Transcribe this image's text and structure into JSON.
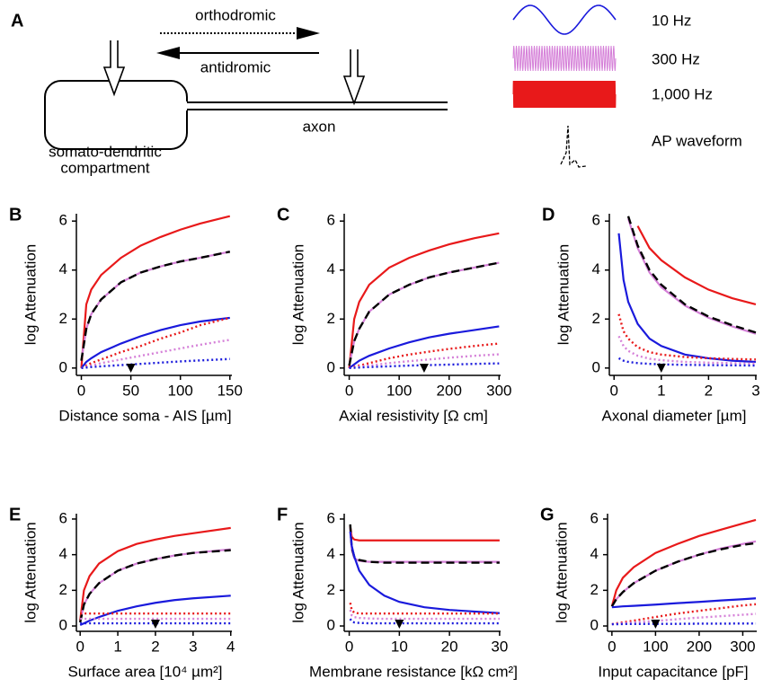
{
  "schematic": {
    "panel": "A",
    "orthodromic": "orthodromic",
    "antidromic": "antidromic",
    "axon": "axon",
    "compartment": [
      "somato-dendritic",
      "compartment"
    ],
    "frequencies": [
      "10 Hz",
      "300 Hz",
      "1,000 Hz"
    ],
    "waveform": "AP waveform"
  },
  "chart_data": [
    {
      "type": "line",
      "panel": "B",
      "xlabel": "Distance soma - AIS [µm]",
      "ylabel": "log Attenuation",
      "xlim": [
        -5,
        152
      ],
      "ylim": [
        -0.3,
        6.3
      ],
      "xticks": [
        0,
        50,
        100,
        150
      ],
      "yticks": [
        0,
        2,
        4,
        6
      ],
      "marker_x": 50,
      "x": [
        0,
        5,
        10,
        20,
        40,
        60,
        80,
        100,
        120,
        150
      ],
      "series": [
        {
          "color": "#e8191a",
          "style": "solid",
          "values": [
            0,
            2.6,
            3.2,
            3.8,
            4.5,
            5.0,
            5.35,
            5.65,
            5.9,
            6.2
          ]
        },
        {
          "color": "#d580d8",
          "style": "solid",
          "values": [
            0.3,
            1.6,
            2.2,
            2.8,
            3.5,
            3.9,
            4.15,
            4.35,
            4.5,
            4.75
          ]
        },
        {
          "color": "#000000",
          "style": "dashed",
          "values": [
            0.3,
            1.6,
            2.2,
            2.8,
            3.5,
            3.9,
            4.15,
            4.35,
            4.5,
            4.75
          ]
        },
        {
          "color": "#1a1adc",
          "style": "solid",
          "values": [
            0,
            0.25,
            0.4,
            0.65,
            1.0,
            1.3,
            1.55,
            1.75,
            1.9,
            2.05
          ]
        },
        {
          "color": "#e8191a",
          "style": "dotted",
          "values": [
            0,
            0.1,
            0.2,
            0.35,
            0.65,
            0.9,
            1.2,
            1.45,
            1.75,
            2.05
          ]
        },
        {
          "color": "#d580d8",
          "style": "dotted",
          "values": [
            0,
            0.05,
            0.1,
            0.2,
            0.35,
            0.5,
            0.65,
            0.8,
            0.95,
            1.15
          ]
        },
        {
          "color": "#1a1adc",
          "style": "dotted",
          "values": [
            0,
            0.02,
            0.04,
            0.07,
            0.12,
            0.17,
            0.22,
            0.27,
            0.31,
            0.37
          ]
        }
      ]
    },
    {
      "type": "line",
      "panel": "C",
      "xlabel": "Axial resistivity [Ω cm]",
      "ylabel": "log Attenuation",
      "xlim": [
        -10,
        303
      ],
      "ylim": [
        -0.3,
        6.3
      ],
      "xticks": [
        0,
        100,
        200,
        300
      ],
      "yticks": [
        0,
        2,
        4,
        6
      ],
      "marker_x": 150,
      "x": [
        0,
        10,
        20,
        40,
        80,
        120,
        160,
        200,
        250,
        300
      ],
      "series": [
        {
          "color": "#e8191a",
          "style": "solid",
          "values": [
            0,
            2.0,
            2.7,
            3.4,
            4.1,
            4.5,
            4.8,
            5.05,
            5.3,
            5.5
          ]
        },
        {
          "color": "#d580d8",
          "style": "solid",
          "values": [
            0.1,
            1.1,
            1.6,
            2.3,
            3.0,
            3.4,
            3.7,
            3.9,
            4.1,
            4.3
          ]
        },
        {
          "color": "#000000",
          "style": "dashed",
          "values": [
            0.1,
            1.1,
            1.6,
            2.3,
            3.0,
            3.4,
            3.7,
            3.9,
            4.1,
            4.3
          ]
        },
        {
          "color": "#1a1adc",
          "style": "solid",
          "values": [
            0,
            0.15,
            0.3,
            0.5,
            0.8,
            1.05,
            1.25,
            1.4,
            1.55,
            1.7
          ]
        },
        {
          "color": "#e8191a",
          "style": "dotted",
          "values": [
            0,
            0.05,
            0.1,
            0.2,
            0.4,
            0.55,
            0.67,
            0.78,
            0.9,
            1.0
          ]
        },
        {
          "color": "#d580d8",
          "style": "dotted",
          "values": [
            0,
            0.03,
            0.06,
            0.1,
            0.2,
            0.28,
            0.35,
            0.42,
            0.5,
            0.56
          ]
        },
        {
          "color": "#1a1adc",
          "style": "dotted",
          "values": [
            0,
            0.01,
            0.02,
            0.04,
            0.07,
            0.1,
            0.12,
            0.14,
            0.17,
            0.19
          ]
        }
      ]
    },
    {
      "type": "line",
      "panel": "D",
      "xlabel": "Axonal diameter [µm]",
      "ylabel": "log Attenuation",
      "xlim": [
        -0.1,
        3.02
      ],
      "ylim": [
        -0.3,
        6.3
      ],
      "xticks": [
        0,
        1,
        2,
        3
      ],
      "yticks": [
        0,
        2,
        4,
        6
      ],
      "marker_x": 1,
      "x": [
        0.1,
        0.2,
        0.3,
        0.5,
        0.75,
        1,
        1.5,
        2,
        2.5,
        3
      ],
      "series": [
        {
          "color": "#e8191a",
          "style": "solid",
          "values": [
            null,
            null,
            null,
            5.8,
            4.9,
            4.4,
            3.7,
            3.2,
            2.85,
            2.6
          ]
        },
        {
          "color": "#d580d8",
          "style": "solid",
          "values": [
            null,
            null,
            6.1,
            4.9,
            3.9,
            3.3,
            2.55,
            2.05,
            1.7,
            1.4
          ]
        },
        {
          "color": "#000000",
          "style": "dashed",
          "values": [
            null,
            null,
            6.2,
            5.0,
            4.0,
            3.4,
            2.6,
            2.1,
            1.75,
            1.45
          ]
        },
        {
          "color": "#1a1adc",
          "style": "solid",
          "values": [
            5.5,
            3.6,
            2.7,
            1.8,
            1.2,
            0.9,
            0.55,
            0.4,
            0.3,
            0.25
          ]
        },
        {
          "color": "#e8191a",
          "style": "dotted",
          "values": [
            2.2,
            1.5,
            1.2,
            0.85,
            0.65,
            0.55,
            0.45,
            0.4,
            0.37,
            0.35
          ]
        },
        {
          "color": "#d580d8",
          "style": "dotted",
          "values": [
            1.3,
            0.9,
            0.7,
            0.5,
            0.38,
            0.32,
            0.25,
            0.22,
            0.2,
            0.18
          ]
        },
        {
          "color": "#1a1adc",
          "style": "dotted",
          "values": [
            0.4,
            0.3,
            0.25,
            0.2,
            0.17,
            0.15,
            0.13,
            0.12,
            0.11,
            0.1
          ]
        }
      ]
    },
    {
      "type": "line",
      "panel": "E",
      "xlabel": "Surface area [10⁴ µm²]",
      "ylabel": "log Attenuation",
      "xlim": [
        -0.1,
        4.03
      ],
      "ylim": [
        -0.3,
        6.3
      ],
      "xticks": [
        0,
        1,
        2,
        3,
        4
      ],
      "yticks": [
        0,
        2,
        4,
        6
      ],
      "marker_x": 2,
      "x": [
        0,
        0.1,
        0.25,
        0.5,
        1,
        1.5,
        2,
        2.5,
        3,
        4
      ],
      "series": [
        {
          "color": "#e8191a",
          "style": "solid",
          "values": [
            0.3,
            2.0,
            2.8,
            3.5,
            4.2,
            4.6,
            4.85,
            5.05,
            5.2,
            5.5
          ]
        },
        {
          "color": "#d580d8",
          "style": "solid",
          "values": [
            0.2,
            1.2,
            1.8,
            2.4,
            3.1,
            3.5,
            3.75,
            3.95,
            4.1,
            4.3
          ]
        },
        {
          "color": "#000000",
          "style": "dashed",
          "values": [
            0.2,
            1.2,
            1.8,
            2.4,
            3.1,
            3.5,
            3.75,
            3.95,
            4.1,
            4.25
          ]
        },
        {
          "color": "#1a1adc",
          "style": "solid",
          "values": [
            0.05,
            0.15,
            0.3,
            0.5,
            0.85,
            1.1,
            1.3,
            1.45,
            1.55,
            1.7
          ]
        },
        {
          "color": "#e8191a",
          "style": "dotted",
          "values": [
            0.7,
            0.7,
            0.7,
            0.7,
            0.7,
            0.7,
            0.7,
            0.7,
            0.7,
            0.7
          ]
        },
        {
          "color": "#d580d8",
          "style": "dotted",
          "values": [
            0.4,
            0.4,
            0.4,
            0.4,
            0.4,
            0.4,
            0.4,
            0.4,
            0.4,
            0.4
          ]
        },
        {
          "color": "#1a1adc",
          "style": "dotted",
          "values": [
            0.15,
            0.15,
            0.15,
            0.15,
            0.15,
            0.15,
            0.15,
            0.15,
            0.15,
            0.15
          ]
        }
      ]
    },
    {
      "type": "line",
      "panel": "F",
      "xlabel": "Membrane resistance [kΩ cm²]",
      "ylabel": "log Attenuation",
      "xlim": [
        -1,
        30.2
      ],
      "ylim": [
        -0.3,
        6.3
      ],
      "xticks": [
        0,
        10,
        20,
        30
      ],
      "yticks": [
        0,
        2,
        4,
        6
      ],
      "marker_x": 10,
      "x": [
        0.2,
        0.5,
        1,
        2,
        4,
        7,
        10,
        15,
        20,
        30
      ],
      "series": [
        {
          "color": "#e8191a",
          "style": "solid",
          "values": [
            5.6,
            5.0,
            4.85,
            4.8,
            4.8,
            4.8,
            4.8,
            4.8,
            4.8,
            4.8
          ]
        },
        {
          "color": "#d580d8",
          "style": "solid",
          "values": [
            5.5,
            4.3,
            3.8,
            3.65,
            3.6,
            3.6,
            3.6,
            3.6,
            3.6,
            3.6
          ]
        },
        {
          "color": "#000000",
          "style": "dashed",
          "values": [
            5.7,
            4.4,
            3.9,
            3.7,
            3.6,
            3.55,
            3.55,
            3.55,
            3.55,
            3.55
          ]
        },
        {
          "color": "#1a1adc",
          "style": "solid",
          "values": [
            5.3,
            4.5,
            3.9,
            3.1,
            2.3,
            1.7,
            1.35,
            1.05,
            0.9,
            0.72
          ]
        },
        {
          "color": "#e8191a",
          "style": "dotted",
          "values": [
            1.3,
            0.9,
            0.75,
            0.7,
            0.7,
            0.7,
            0.7,
            0.7,
            0.7,
            0.7
          ]
        },
        {
          "color": "#d580d8",
          "style": "dotted",
          "values": [
            0.9,
            0.6,
            0.5,
            0.45,
            0.42,
            0.4,
            0.4,
            0.4,
            0.4,
            0.4
          ]
        },
        {
          "color": "#1a1adc",
          "style": "dotted",
          "values": [
            0.4,
            0.25,
            0.2,
            0.17,
            0.15,
            0.15,
            0.15,
            0.15,
            0.15,
            0.15
          ]
        }
      ]
    },
    {
      "type": "line",
      "panel": "G",
      "xlabel": "Input capacitance [pF]",
      "ylabel": "log Attenuation",
      "xlim": [
        -10,
        332
      ],
      "ylim": [
        -0.3,
        6.3
      ],
      "xticks": [
        0,
        100,
        200,
        300
      ],
      "yticks": [
        0,
        2,
        4,
        6
      ],
      "marker_x": 100,
      "x": [
        0,
        10,
        25,
        50,
        100,
        150,
        200,
        250,
        300,
        330
      ],
      "series": [
        {
          "color": "#e8191a",
          "style": "solid",
          "values": [
            1.1,
            2.0,
            2.7,
            3.3,
            4.1,
            4.6,
            5.05,
            5.4,
            5.75,
            5.95
          ]
        },
        {
          "color": "#d580d8",
          "style": "solid",
          "values": [
            1.1,
            1.5,
            1.9,
            2.4,
            3.1,
            3.6,
            4.0,
            4.35,
            4.6,
            4.75
          ]
        },
        {
          "color": "#000000",
          "style": "dashed",
          "values": [
            1.1,
            1.5,
            1.9,
            2.4,
            3.1,
            3.6,
            4.0,
            4.3,
            4.55,
            4.65
          ]
        },
        {
          "color": "#1a1adc",
          "style": "solid",
          "values": [
            1.05,
            1.07,
            1.1,
            1.13,
            1.2,
            1.28,
            1.35,
            1.43,
            1.5,
            1.55
          ]
        },
        {
          "color": "#e8191a",
          "style": "dotted",
          "values": [
            0.1,
            0.15,
            0.2,
            0.3,
            0.5,
            0.7,
            0.85,
            1.0,
            1.15,
            1.22
          ]
        },
        {
          "color": "#d580d8",
          "style": "dotted",
          "values": [
            0.1,
            0.12,
            0.15,
            0.2,
            0.28,
            0.38,
            0.47,
            0.55,
            0.63,
            0.68
          ]
        },
        {
          "color": "#1a1adc",
          "style": "dotted",
          "values": [
            0.1,
            0.1,
            0.11,
            0.11,
            0.12,
            0.12,
            0.13,
            0.13,
            0.14,
            0.14
          ]
        }
      ]
    }
  ]
}
